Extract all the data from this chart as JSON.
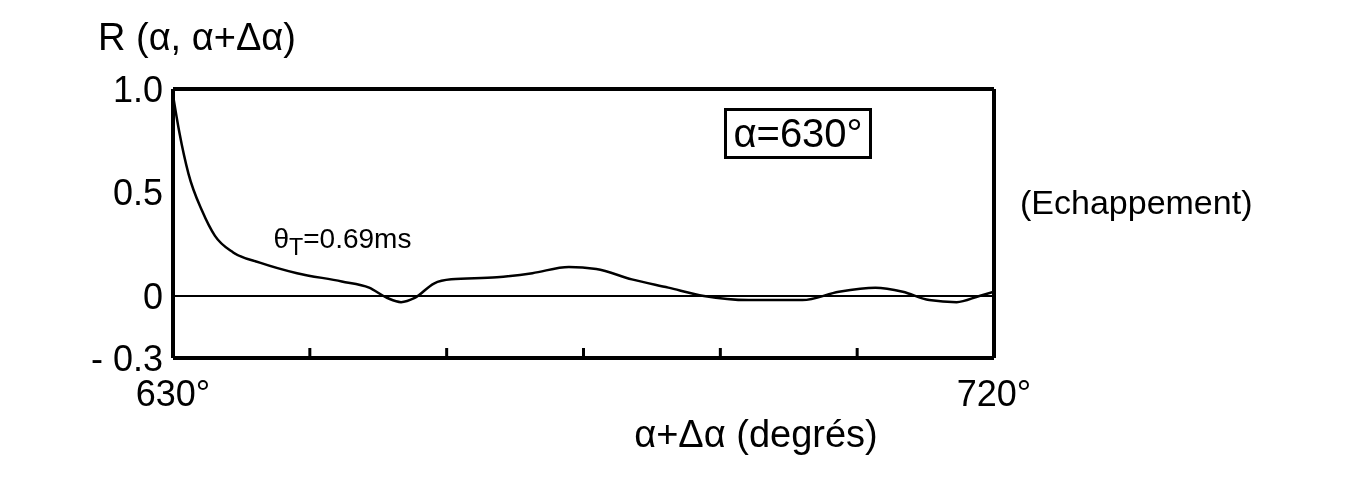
{
  "chart_data": {
    "type": "line",
    "ylabel": "R (α, α+Δα)",
    "xlabel": "α+Δα (degrés)",
    "x": [
      630,
      630.7,
      631.7,
      633.2,
      634.6,
      636.6,
      639.6,
      643.6,
      648.5,
      651.5,
      653.5,
      655,
      656.5,
      658.6,
      660.5,
      665.5,
      669.4,
      673.4,
      676.4,
      680.3,
      684.3,
      688.2,
      693.1,
      699,
      703,
      707,
      710,
      712.9,
      715.9,
      718.4,
      720
    ],
    "series": [
      {
        "color": "#000000",
        "values": [
          0.97,
          0.79,
          0.59,
          0.41,
          0.29,
          0.21,
          0.16,
          0.11,
          0.07,
          0.04,
          -0.01,
          -0.03,
          -0.01,
          0.06,
          0.08,
          0.09,
          0.11,
          0.14,
          0.13,
          0.08,
          0.04,
          0,
          -0.02,
          -0.02,
          0.02,
          0.04,
          0.02,
          -0.02,
          -0.03,
          0,
          0.02
        ]
      }
    ],
    "xlim": [
      630,
      720
    ],
    "xticks": [
      {
        "value": 630,
        "label": "630°"
      },
      {
        "value": 645,
        "label": null
      },
      {
        "value": 660,
        "label": null
      },
      {
        "value": 675,
        "label": null
      },
      {
        "value": 690,
        "label": null
      },
      {
        "value": 705,
        "label": null
      },
      {
        "value": 720,
        "label": "720°"
      }
    ],
    "ylim": [
      -0.3,
      1
    ],
    "yticks": [
      {
        "value": -0.3,
        "label": "- 0.3"
      },
      0,
      {
        "value": 0.5,
        "label": "0.5"
      },
      {
        "value": 1,
        "label": "1.0"
      }
    ],
    "ref_lines": [
      {
        "axis": "y",
        "value": 0,
        "color": "#000000"
      }
    ],
    "annotations": [
      "α=630°",
      "θ$_{T}$=0.69ms",
      "(Echappement)"
    ],
    "grid": false,
    "legend": false,
    "marker": "none",
    "line_style": "solid"
  }
}
